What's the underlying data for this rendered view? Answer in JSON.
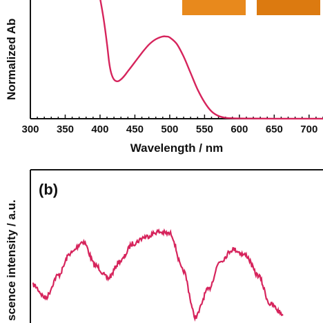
{
  "chart_data": [
    {
      "panel": "a",
      "type": "line",
      "xlabel": "Wavelength / nm",
      "ylabel": "Normalized Ab",
      "xlim": [
        300,
        720
      ],
      "ylim": [
        0,
        1.3
      ],
      "x_ticks": [
        300,
        350,
        400,
        450,
        500,
        550,
        600,
        650,
        700
      ],
      "x_tick_labels": [
        "300",
        "350",
        "400",
        "450",
        "500",
        "550",
        "600",
        "650",
        "700"
      ],
      "color": "#d6245c",
      "series": [
        {
          "x": [
            400,
            405,
            410,
            413,
            416,
            420,
            425,
            430,
            435,
            440,
            450,
            460,
            470,
            480,
            490,
            495,
            500,
            510,
            520,
            530,
            540,
            550,
            560,
            570,
            580,
            590,
            600,
            620,
            650,
            700,
            720
          ],
          "y": [
            1.32,
            1.1,
            0.82,
            0.62,
            0.5,
            0.43,
            0.41,
            0.43,
            0.47,
            0.52,
            0.62,
            0.72,
            0.81,
            0.87,
            0.9,
            0.9,
            0.89,
            0.82,
            0.68,
            0.5,
            0.32,
            0.18,
            0.08,
            0.03,
            0.01,
            0.005,
            0.003,
            0.002,
            0.001,
            0.001,
            0.001
          ]
        }
      ],
      "inset_swatches": [
        "#e8891c",
        "#dc7a10"
      ]
    },
    {
      "panel": "b",
      "type": "line",
      "ylabel": "scence intensity / a.u.",
      "panel_label": "(b)",
      "color": "#d6245c",
      "series": [
        {
          "x": [
            0,
            5,
            10,
            15,
            20,
            25,
            30,
            35,
            40,
            45,
            50,
            55,
            60,
            65,
            70,
            75,
            80,
            85,
            90,
            95,
            100
          ],
          "y": [
            0.35,
            0.22,
            0.45,
            0.68,
            0.8,
            0.55,
            0.42,
            0.6,
            0.78,
            0.85,
            0.9,
            0.88,
            0.5,
            0.02,
            0.3,
            0.6,
            0.72,
            0.66,
            0.45,
            0.15,
            0.05
          ]
        }
      ]
    }
  ]
}
